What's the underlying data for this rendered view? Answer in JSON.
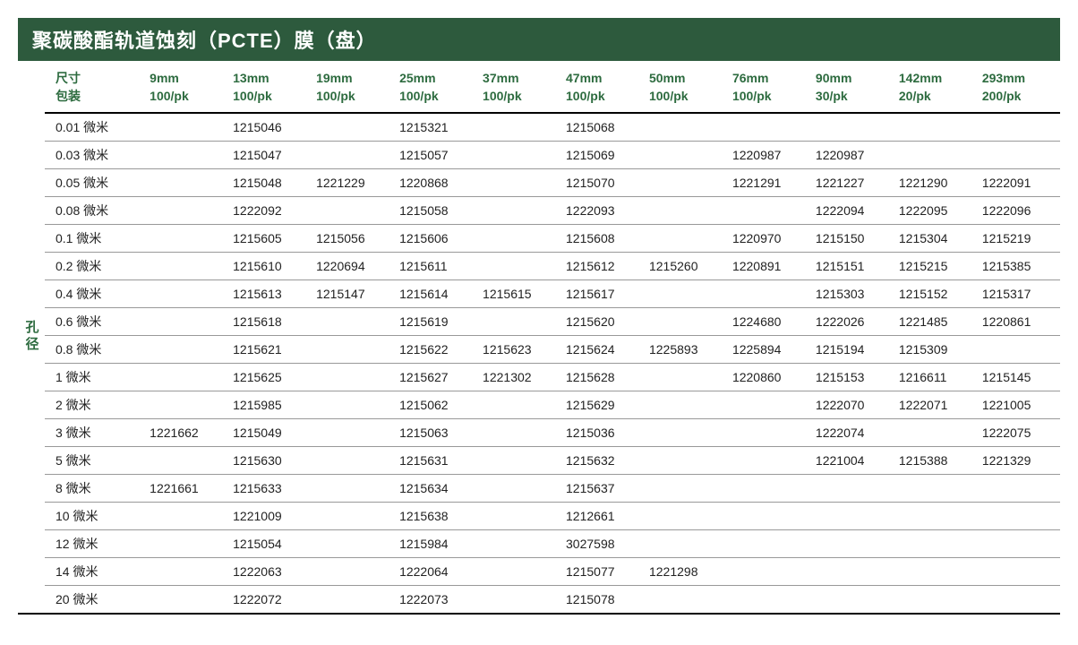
{
  "title": "聚碳酸酯轨道蚀刻（PCTE）膜（盘）",
  "sideLabel": "孔径",
  "header": {
    "firstCol": {
      "line1": "尺寸",
      "line2": "包装"
    },
    "cols": [
      {
        "line1": "9mm",
        "line2": "100/pk"
      },
      {
        "line1": "13mm",
        "line2": "100/pk"
      },
      {
        "line1": "19mm",
        "line2": "100/pk"
      },
      {
        "line1": "25mm",
        "line2": "100/pk"
      },
      {
        "line1": "37mm",
        "line2": "100/pk"
      },
      {
        "line1": "47mm",
        "line2": "100/pk"
      },
      {
        "line1": "50mm",
        "line2": "100/pk"
      },
      {
        "line1": "76mm",
        "line2": "100/pk"
      },
      {
        "line1": "90mm",
        "line2": "30/pk"
      },
      {
        "line1": "142mm",
        "line2": "20/pk"
      },
      {
        "line1": "293mm",
        "line2": "200/pk"
      }
    ]
  },
  "rows": [
    {
      "label": "0.01 微米",
      "cells": [
        "",
        "1215046",
        "",
        "1215321",
        "",
        "1215068",
        "",
        "",
        "",
        "",
        ""
      ]
    },
    {
      "label": "0.03 微米",
      "cells": [
        "",
        "1215047",
        "",
        "1215057",
        "",
        "1215069",
        "",
        "1220987",
        "1220987",
        "",
        ""
      ]
    },
    {
      "label": "0.05 微米",
      "cells": [
        "",
        "1215048",
        "1221229",
        "1220868",
        "",
        "1215070",
        "",
        "1221291",
        "1221227",
        "1221290",
        "1222091"
      ]
    },
    {
      "label": "0.08 微米",
      "cells": [
        "",
        "1222092",
        "",
        "1215058",
        "",
        "1222093",
        "",
        "",
        "1222094",
        "1222095",
        "1222096"
      ]
    },
    {
      "label": "0.1 微米",
      "cells": [
        "",
        "1215605",
        "1215056",
        "1215606",
        "",
        "1215608",
        "",
        "1220970",
        "1215150",
        "1215304",
        "1215219"
      ]
    },
    {
      "label": "0.2 微米",
      "cells": [
        "",
        "1215610",
        "1220694",
        "1215611",
        "",
        "1215612",
        "1215260",
        "1220891",
        "1215151",
        "1215215",
        "1215385"
      ]
    },
    {
      "label": "0.4 微米",
      "cells": [
        "",
        "1215613",
        "1215147",
        "1215614",
        "1215615",
        "1215617",
        "",
        "",
        "1215303",
        "1215152",
        "1215317"
      ]
    },
    {
      "label": "0.6 微米",
      "cells": [
        "",
        "1215618",
        "",
        "1215619",
        "",
        "1215620",
        "",
        "1224680",
        "1222026",
        "1221485",
        "1220861"
      ]
    },
    {
      "label": "0.8 微米",
      "cells": [
        "",
        "1215621",
        "",
        "1215622",
        "1215623",
        "1215624",
        "1225893",
        "1225894",
        "1215194",
        "1215309",
        ""
      ]
    },
    {
      "label": "1 微米",
      "cells": [
        "",
        "1215625",
        "",
        "1215627",
        "1221302",
        "1215628",
        "",
        "1220860",
        "1215153",
        "1216611",
        "1215145"
      ]
    },
    {
      "label": "2 微米",
      "cells": [
        "",
        "1215985",
        "",
        "1215062",
        "",
        "1215629",
        "",
        "",
        "1222070",
        "1222071",
        "1221005"
      ]
    },
    {
      "label": "3 微米",
      "cells": [
        "1221662",
        "1215049",
        "",
        "1215063",
        "",
        "1215036",
        "",
        "",
        "1222074",
        "",
        "1222075"
      ]
    },
    {
      "label": "5 微米",
      "cells": [
        "",
        "1215630",
        "",
        "1215631",
        "",
        "1215632",
        "",
        "",
        "1221004",
        "1215388",
        "1221329"
      ]
    },
    {
      "label": "8 微米",
      "cells": [
        "1221661",
        "1215633",
        "",
        "1215634",
        "",
        "1215637",
        "",
        "",
        "",
        "",
        ""
      ]
    },
    {
      "label": "10 微米",
      "cells": [
        "",
        "1221009",
        "",
        "1215638",
        "",
        "1212661",
        "",
        "",
        "",
        "",
        ""
      ]
    },
    {
      "label": "12 微米",
      "cells": [
        "",
        "1215054",
        "",
        "1215984",
        "",
        "3027598",
        "",
        "",
        "",
        "",
        ""
      ]
    },
    {
      "label": "14 微米",
      "cells": [
        "",
        "1222063",
        "",
        "1222064",
        "",
        "1215077",
        "1221298",
        "",
        "",
        "",
        ""
      ]
    },
    {
      "label": "20 微米",
      "cells": [
        "",
        "1222072",
        "",
        "1222073",
        "",
        "1215078",
        "",
        "",
        "",
        "",
        ""
      ]
    }
  ],
  "styling": {
    "title_bg": "#2d5a3d",
    "title_color": "#ffffff",
    "header_text_color": "#2d6b3f",
    "body_text_color": "#222222",
    "row_border_color": "#999999",
    "outer_border_color": "#000000",
    "title_fontsize": 22,
    "header_fontsize": 14,
    "cell_fontsize": 14
  }
}
